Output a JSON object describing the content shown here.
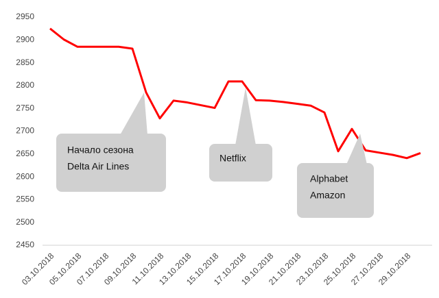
{
  "chart_data": {
    "type": "line",
    "categories": [
      "03.10.2018",
      null,
      "05.10.2018",
      null,
      "07.10.2018",
      null,
      "09.10.2018",
      null,
      "11.10.2018",
      null,
      "13.10.2018",
      null,
      "15.10.2018",
      null,
      "17.10.2018",
      null,
      "19.10.2018",
      null,
      "21.10.2018",
      null,
      "23.10.2018",
      null,
      "25.10.2018",
      null,
      "27.10.2018",
      null,
      "29.10.2018",
      null
    ],
    "values": [
      2925,
      2901,
      2885,
      2885,
      2885,
      2885,
      2881,
      2785,
      2728,
      2767,
      2763,
      2757,
      2751,
      2809,
      2809,
      2768,
      2767,
      2764,
      2760,
      2756,
      2741,
      2656,
      2705,
      2658,
      2653,
      2648,
      2641,
      2652
    ],
    "color": "#ff0000",
    "ylim": [
      2450,
      2950
    ],
    "yticks": [
      2450,
      2500,
      2550,
      2600,
      2650,
      2700,
      2750,
      2800,
      2850,
      2900,
      2950
    ],
    "grid": false,
    "annotations": [
      {
        "lines": [
          "Начало сезона",
          "Delta Air Lines"
        ]
      },
      {
        "lines": [
          "Netflix"
        ]
      },
      {
        "lines": [
          "Alphabet",
          "Amazon"
        ]
      }
    ]
  }
}
